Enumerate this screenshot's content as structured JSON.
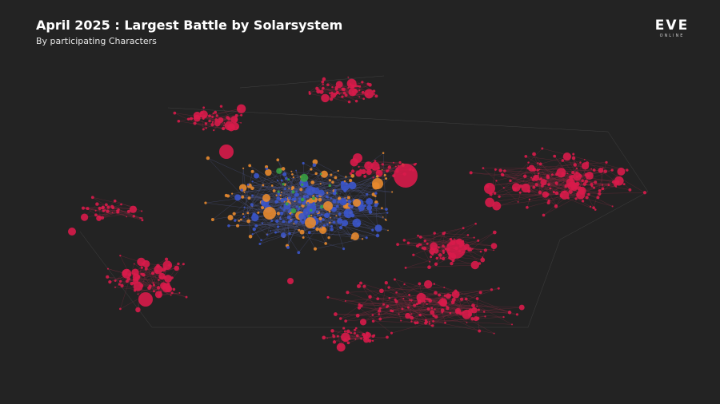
{
  "header": {
    "title": "April 2025 : Largest Battle by Solarsystem",
    "subtitle": "By participating Characters"
  },
  "logo": {
    "name": "EVE",
    "tagline": "ONLINE"
  }
}
